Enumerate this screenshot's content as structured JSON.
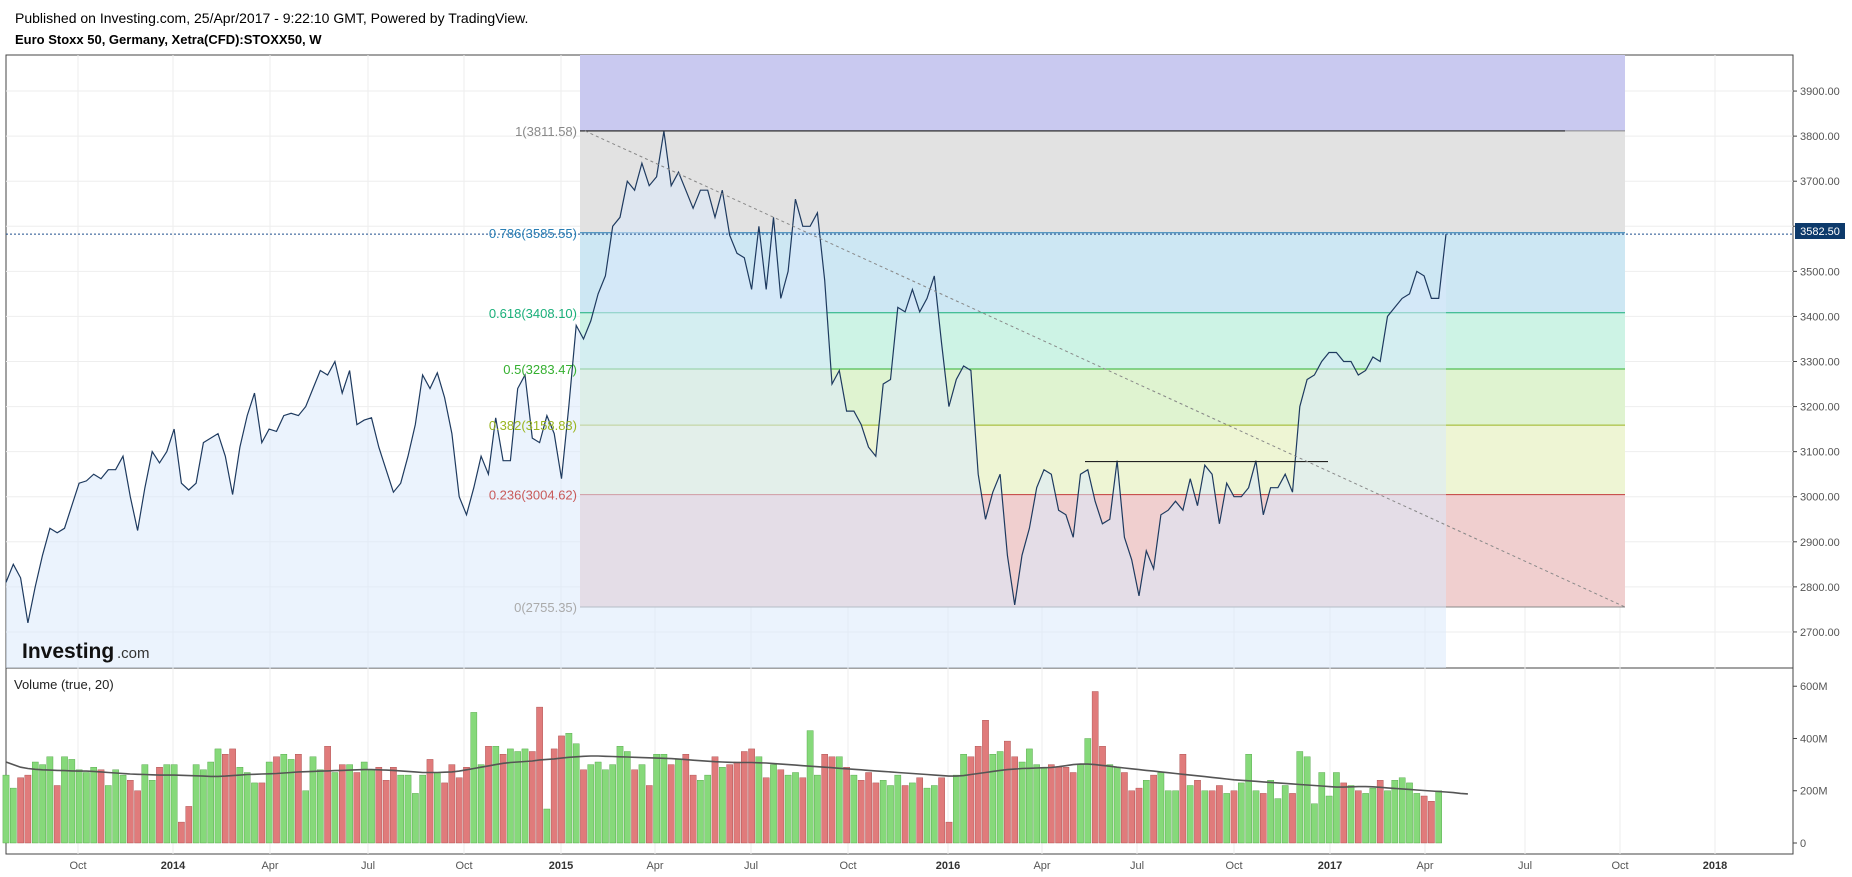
{
  "header": {
    "published": "Published on Investing.com, 25/Apr/2017 - 9:22:10 GMT, Powered by TradingView.",
    "symbol": "Euro Stoxx 50, Germany, Xetra(CFD):STOXX50, W"
  },
  "logo": {
    "brand": "Investing",
    "suffix": ".com"
  },
  "volume_title": "Volume (true, 20)",
  "price_tag": "3582.50",
  "colors": {
    "price_line": "#1e3a5f",
    "price_fill": "#dbeafb",
    "volume_up": "#86d97a",
    "volume_down": "#e07b7b",
    "ma_line": "#555555",
    "fib_top_band": "#c9c9f0",
    "fib_1_0786": "#e2e2e2",
    "fib_0786_0618": "#cde7f3",
    "fib_0618_05": "#cdf3e5",
    "fib_05_0382": "#dff3d0",
    "fib_0382_0236": "#eef5d4",
    "fib_0236_0": "#f0cfcf",
    "price_tag_bg": "#0d3a6b"
  },
  "chart_data": [
    {
      "type": "line",
      "title": "Euro Stoxx 50, Germany, Xetra(CFD):STOXX50, W",
      "x_ticks": [
        "Oct",
        "2014",
        "Apr",
        "Jul",
        "Oct",
        "2015",
        "Apr",
        "Jul",
        "Oct",
        "2016",
        "Apr",
        "Jul",
        "Oct",
        "2017",
        "Apr",
        "Jul",
        "Oct",
        "2018"
      ],
      "y_ticks": [
        "3900.00",
        "3800.00",
        "3700.00",
        "3600.00",
        "3500.00",
        "3400.00",
        "3300.00",
        "3200.00",
        "3100.00",
        "3000.00",
        "2900.00",
        "2800.00",
        "2700.00"
      ],
      "ylim": [
        2620,
        3980
      ],
      "last_value": 3582.5,
      "series": [
        {
          "values": [
            2810,
            2850,
            2820,
            2720,
            2800,
            2870,
            2930,
            2920,
            2930,
            2980,
            3030,
            3035,
            3050,
            3040,
            3060,
            3060,
            3090,
            3000,
            2925,
            3020,
            3100,
            3075,
            3100,
            3150,
            3030,
            3015,
            3030,
            3120,
            3130,
            3140,
            3090,
            3005,
            3110,
            3180,
            3230,
            3120,
            3150,
            3145,
            3180,
            3185,
            3180,
            3200,
            3240,
            3280,
            3270,
            3300,
            3230,
            3280,
            3160,
            3170,
            3175,
            3110,
            3060,
            3010,
            3030,
            3090,
            3160,
            3270,
            3240,
            3275,
            3220,
            3140,
            3000,
            2960,
            3020,
            3090,
            3050,
            3175,
            3080,
            3080,
            3240,
            3270,
            3130,
            3120,
            3180,
            3140,
            3040,
            3200,
            3380,
            3350,
            3390,
            3450,
            3490,
            3600,
            3620,
            3700,
            3680,
            3740,
            3690,
            3710,
            3811,
            3690,
            3720,
            3680,
            3640,
            3680,
            3680,
            3620,
            3680,
            3580,
            3540,
            3530,
            3460,
            3600,
            3460,
            3620,
            3440,
            3500,
            3660,
            3600,
            3600,
            3630,
            3480,
            3250,
            3280,
            3190,
            3190,
            3160,
            3110,
            3090,
            3250,
            3260,
            3420,
            3410,
            3460,
            3410,
            3440,
            3490,
            3340,
            3200,
            3260,
            3290,
            3280,
            3050,
            2950,
            3010,
            3050,
            2870,
            2760,
            2870,
            2930,
            3020,
            3060,
            3050,
            2970,
            2960,
            2910,
            3050,
            3060,
            2990,
            2940,
            2950,
            3080,
            2910,
            2860,
            2780,
            2880,
            2840,
            2960,
            2970,
            2990,
            2970,
            3040,
            2980,
            3070,
            3050,
            2940,
            3030,
            3000,
            3000,
            3020,
            3080,
            2960,
            3020,
            3020,
            3050,
            3010,
            3200,
            3260,
            3270,
            3300,
            3320,
            3320,
            3300,
            3300,
            3270,
            3280,
            3310,
            3300,
            3400,
            3420,
            3440,
            3450,
            3500,
            3490,
            3440,
            3440,
            3582.5
          ]
        }
      ]
    },
    {
      "type": "fibonacci_retracement",
      "levels": [
        {
          "ratio": 1,
          "value": 3811.58,
          "label": "1(3811.58)"
        },
        {
          "ratio": 0.786,
          "value": 3585.55,
          "label": "0.786(3585.55)"
        },
        {
          "ratio": 0.618,
          "value": 3408.1,
          "label": "0.618(3408.10)"
        },
        {
          "ratio": 0.5,
          "value": 3283.47,
          "label": "0.5(3283.47)"
        },
        {
          "ratio": 0.382,
          "value": 3158.83,
          "label": "0.382(3158.83)"
        },
        {
          "ratio": 0.236,
          "value": 3004.62,
          "label": "0.236(3004.62)"
        },
        {
          "ratio": 0,
          "value": 2755.35,
          "label": "0(2755.35)"
        }
      ]
    },
    {
      "type": "bar",
      "title": "Volume (true, 20)",
      "y_ticks": [
        "600M",
        "400M",
        "200M",
        "0"
      ],
      "ylim": [
        0,
        620
      ],
      "unit": "M",
      "series": [
        {
          "name": "volume",
          "values": [
            260,
            210,
            250,
            260,
            310,
            300,
            330,
            220,
            330,
            320,
            280,
            270,
            290,
            280,
            220,
            280,
            260,
            240,
            200,
            300,
            240,
            290,
            300,
            300,
            80,
            140,
            300,
            280,
            310,
            360,
            340,
            360,
            290,
            270,
            230,
            230,
            310,
            330,
            340,
            320,
            340,
            200,
            330,
            280,
            370,
            270,
            300,
            300,
            270,
            310,
            280,
            290,
            240,
            290,
            260,
            260,
            190,
            260,
            320,
            270,
            230,
            300,
            250,
            290,
            500,
            300,
            370,
            370,
            340,
            360,
            350,
            360,
            350,
            520,
            130,
            360,
            410,
            420,
            380,
            280,
            300,
            310,
            280,
            300,
            370,
            350,
            280,
            300,
            220,
            340,
            340,
            300,
            320,
            340,
            260,
            240,
            260,
            330,
            290,
            300,
            310,
            350,
            360,
            330,
            250,
            300,
            280,
            260,
            270,
            250,
            430,
            260,
            340,
            330,
            330,
            290,
            260,
            240,
            270,
            230,
            240,
            220,
            260,
            220,
            230,
            250,
            210,
            220,
            250,
            80,
            260,
            340,
            330,
            370,
            470,
            340,
            350,
            390,
            330,
            310,
            360,
            300,
            290,
            300,
            290,
            290,
            270,
            300,
            400,
            580,
            370,
            300,
            290,
            270,
            200,
            210,
            240,
            260,
            270,
            200,
            200,
            340,
            220,
            240,
            200,
            200,
            220,
            190,
            200,
            230,
            340,
            200,
            190,
            240,
            170,
            220,
            190,
            350,
            330,
            150,
            270,
            180,
            270,
            230,
            220,
            200,
            190,
            210,
            240,
            200,
            240,
            250,
            230,
            190,
            180,
            160,
            200
          ]
        },
        {
          "name": "ma20",
          "values": [
            310,
            300,
            290,
            285,
            282,
            280,
            279,
            278,
            277,
            276,
            275,
            275,
            274,
            272,
            270,
            268,
            266,
            264,
            263,
            262,
            261,
            260,
            260,
            260,
            259,
            258,
            257,
            256,
            255,
            255,
            256,
            258,
            260,
            262,
            263,
            264,
            265,
            266,
            268,
            270,
            272,
            273,
            274,
            275,
            276,
            277,
            278,
            279,
            280,
            281,
            281,
            280,
            279,
            278,
            276,
            274,
            272,
            270,
            270,
            270,
            271,
            272,
            275,
            280,
            285,
            290,
            295,
            300,
            305,
            308,
            310,
            312,
            314,
            318,
            320,
            322,
            325,
            328,
            330,
            332,
            333,
            333,
            332,
            331,
            330,
            329,
            328,
            327,
            326,
            325,
            324,
            323,
            321,
            319,
            317,
            315,
            313,
            311,
            310,
            309,
            308,
            308,
            308,
            307,
            306,
            304,
            302,
            300,
            298,
            296,
            294,
            292,
            290,
            288,
            286,
            284,
            282,
            280,
            278,
            276,
            274,
            272,
            270,
            268,
            266,
            264,
            262,
            260,
            258,
            256,
            256,
            258,
            262,
            266,
            270,
            274,
            278,
            281,
            283,
            285,
            286,
            287,
            288,
            289,
            292,
            296,
            300,
            302,
            302,
            300,
            297,
            294,
            290,
            287,
            284,
            281,
            278,
            275,
            272,
            269,
            266,
            263,
            260,
            257,
            254,
            251,
            248,
            245,
            242,
            240,
            238,
            236,
            234,
            232,
            230,
            228,
            226,
            224,
            222,
            220,
            218,
            216,
            214,
            214,
            215,
            216,
            216,
            215,
            213,
            211,
            209,
            207,
            205,
            203,
            201,
            199,
            197,
            195,
            193,
            190,
            188
          ]
        }
      ]
    }
  ]
}
